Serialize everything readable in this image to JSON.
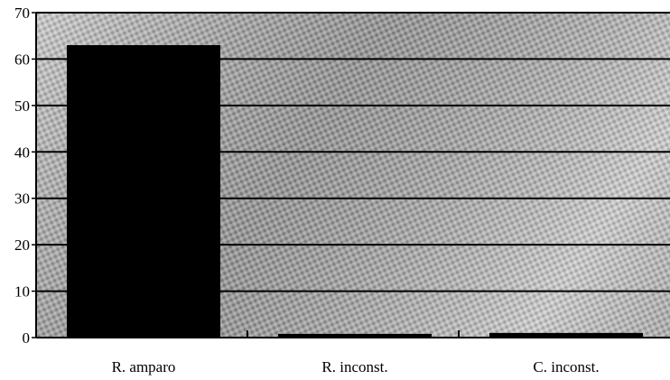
{
  "chart_data": {
    "type": "bar",
    "categories": [
      "R. amparo",
      "R. inconst.",
      "C. inconst."
    ],
    "values": [
      63,
      0.8,
      1
    ],
    "title": "",
    "xlabel": "",
    "ylabel": "",
    "ylim": [
      0,
      70
    ],
    "yticks": [
      "0",
      "10",
      "20",
      "30",
      "40",
      "50",
      "60",
      "70"
    ],
    "grid": true,
    "bar_color": "#000000",
    "plot_background": "textured gray"
  }
}
